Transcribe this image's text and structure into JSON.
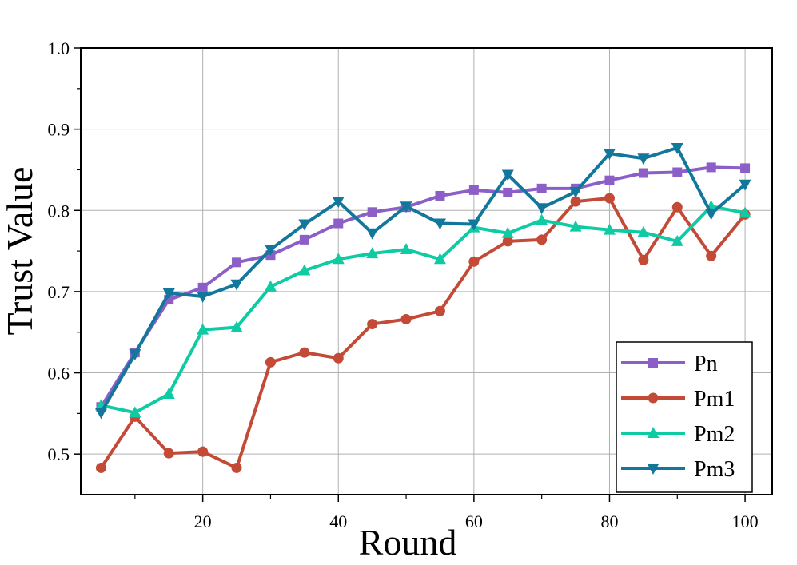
{
  "chart_data": {
    "type": "line",
    "title": "",
    "xlabel": "Round",
    "ylabel": "Trust Value",
    "xlim": [
      2,
      104
    ],
    "ylim": [
      0.45,
      1.0
    ],
    "x_ticks": [
      20,
      40,
      60,
      80,
      100
    ],
    "x_tick_labels": [
      "20",
      "40",
      "60",
      "80",
      "100"
    ],
    "y_ticks": [
      0.5,
      0.6,
      0.7,
      0.8,
      0.9,
      1.0
    ],
    "y_tick_labels": [
      "0.5",
      "0.6",
      "0.7",
      "0.8",
      "0.9",
      "1.0"
    ],
    "grid": true,
    "legend_position": "bottom-right",
    "x": [
      5,
      10,
      15,
      20,
      25,
      30,
      35,
      40,
      45,
      50,
      55,
      60,
      65,
      70,
      75,
      80,
      85,
      90,
      95,
      100
    ],
    "series": [
      {
        "name": "Pn",
        "color": "#8c5fc8",
        "marker": "square",
        "values": [
          0.558,
          0.625,
          0.69,
          0.705,
          0.736,
          0.745,
          0.764,
          0.784,
          0.798,
          0.804,
          0.818,
          0.825,
          0.822,
          0.827,
          0.827,
          0.837,
          0.846,
          0.847,
          0.853,
          0.852
        ]
      },
      {
        "name": "Pm1",
        "color": "#c34a36",
        "marker": "circle",
        "values": [
          0.483,
          0.546,
          0.501,
          0.503,
          0.483,
          0.613,
          0.625,
          0.618,
          0.66,
          0.666,
          0.676,
          0.737,
          0.762,
          0.764,
          0.811,
          0.815,
          0.739,
          0.804,
          0.744,
          0.795
        ]
      },
      {
        "name": "Pm2",
        "color": "#0fcba4",
        "marker": "triangle-up",
        "values": [
          0.56,
          0.551,
          0.574,
          0.653,
          0.656,
          0.706,
          0.726,
          0.74,
          0.747,
          0.752,
          0.74,
          0.779,
          0.772,
          0.788,
          0.78,
          0.776,
          0.773,
          0.762,
          0.805,
          0.797
        ]
      },
      {
        "name": "Pm3",
        "color": "#13779c",
        "marker": "triangle-down",
        "values": [
          0.551,
          0.623,
          0.698,
          0.694,
          0.709,
          0.752,
          0.783,
          0.811,
          0.772,
          0.805,
          0.784,
          0.783,
          0.844,
          0.803,
          0.823,
          0.87,
          0.864,
          0.877,
          0.796,
          0.832
        ]
      }
    ]
  }
}
